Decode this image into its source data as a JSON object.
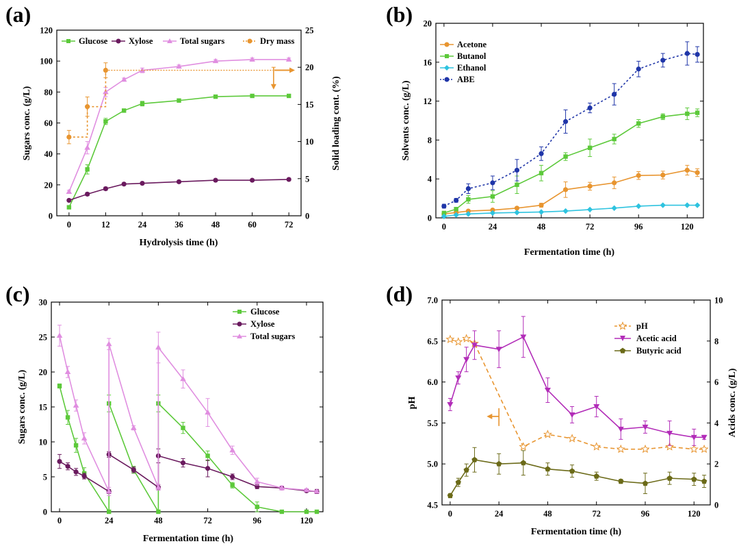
{
  "chart_data": [
    {
      "panel": "(a)",
      "type": "line",
      "xlabel": "Hydrolysis time (h)",
      "ylabel": "Sugars conc. (g/L)",
      "y2label": "Solid loading cont. (%)",
      "xlim": [
        -4,
        76
      ],
      "ylim": [
        0,
        120
      ],
      "y2lim": [
        0,
        25
      ],
      "xticks": [
        0,
        12,
        24,
        36,
        48,
        60,
        72
      ],
      "yticks": [
        0,
        20,
        40,
        60,
        80,
        100,
        120
      ],
      "y2ticks": [
        0,
        5,
        10,
        15,
        20,
        25
      ],
      "series": [
        {
          "name": "Glucose",
          "color": "#5cc93a",
          "marker": "square",
          "dash": "",
          "axis": "left",
          "x": [
            0,
            6,
            12,
            18,
            24,
            36,
            48,
            60,
            72
          ],
          "y": [
            5.5,
            30,
            61,
            68,
            72.5,
            74.5,
            77,
            77.5,
            77.5
          ],
          "err": [
            1,
            3,
            2,
            1,
            1.5,
            1,
            1,
            1,
            1
          ]
        },
        {
          "name": "Xylose",
          "color": "#6a1a5e",
          "marker": "circle",
          "dash": "",
          "axis": "left",
          "x": [
            0,
            6,
            12,
            18,
            24,
            36,
            48,
            60,
            72
          ],
          "y": [
            10,
            14,
            17.5,
            20.5,
            21,
            22,
            23,
            23,
            23.5
          ],
          "err": [
            0.5,
            1,
            1,
            0.5,
            0.5,
            0.5,
            0.5,
            0.5,
            0.5
          ]
        },
        {
          "name": "Total sugars",
          "color": "#e08ee0",
          "marker": "triangle",
          "dash": "",
          "axis": "left",
          "x": [
            0,
            6,
            12,
            18,
            24,
            36,
            48,
            60,
            72
          ],
          "y": [
            15.5,
            44,
            80,
            88,
            94,
            96.5,
            100,
            101,
            101
          ],
          "err": [
            1,
            4,
            3,
            1,
            1.5,
            1,
            1,
            1,
            1
          ]
        },
        {
          "name": "Dry mass",
          "color": "#e89530",
          "marker": "circle",
          "dash": "3,3",
          "axis": "right",
          "step": true,
          "x": [
            0,
            6,
            12
          ],
          "y": [
            10.6,
            14.7,
            19.6
          ],
          "err": [
            0.9,
            1.3,
            1.0
          ]
        }
      ],
      "annotations": [
        {
          "type": "hline-arrow",
          "x1": 12,
          "x2": 74,
          "y2": 19.6
        },
        {
          "type": "arrow",
          "x": 67,
          "from": 20,
          "to": 17
        }
      ]
    },
    {
      "panel": "(b)",
      "type": "line",
      "xlabel": "Fermentation time (h)",
      "ylabel": "Solvents conc. (g/L)",
      "xlim": [
        -4,
        128
      ],
      "ylim": [
        0,
        20
      ],
      "xticks": [
        0,
        24,
        48,
        72,
        96,
        120
      ],
      "yticks": [
        0,
        4,
        8,
        12,
        16,
        20
      ],
      "series": [
        {
          "name": "Acetone",
          "color": "#e89530",
          "marker": "circle",
          "dash": "",
          "x": [
            0,
            6,
            12,
            24,
            36,
            48,
            60,
            72,
            84,
            96,
            108,
            120,
            125
          ],
          "y": [
            0.4,
            0.55,
            0.7,
            0.8,
            1.0,
            1.3,
            2.9,
            3.25,
            3.6,
            4.35,
            4.4,
            4.9,
            4.65
          ],
          "err": [
            0.1,
            0.1,
            0.1,
            0.1,
            0.1,
            0.2,
            0.8,
            0.4,
            0.6,
            0.4,
            0.4,
            0.5,
            0.4
          ]
        },
        {
          "name": "Butanol",
          "color": "#5cc93a",
          "marker": "square",
          "dash": "",
          "x": [
            0,
            6,
            12,
            24,
            36,
            48,
            60,
            72,
            84,
            96,
            108,
            120,
            125
          ],
          "y": [
            0.5,
            0.9,
            1.9,
            2.2,
            3.4,
            4.6,
            6.3,
            7.2,
            8.1,
            9.7,
            10.4,
            10.7,
            10.8
          ],
          "err": [
            0.1,
            0.1,
            0.4,
            0.6,
            0.9,
            0.8,
            0.4,
            0.9,
            0.5,
            0.4,
            0.3,
            0.6,
            0.4
          ]
        },
        {
          "name": "Ethanol",
          "color": "#2ec3df",
          "marker": "diamond",
          "dash": "",
          "x": [
            0,
            6,
            12,
            24,
            36,
            48,
            60,
            72,
            84,
            96,
            108,
            120,
            125
          ],
          "y": [
            0.15,
            0.3,
            0.4,
            0.5,
            0.55,
            0.6,
            0.7,
            0.85,
            1.0,
            1.2,
            1.3,
            1.3,
            1.3
          ],
          "err": [
            0,
            0,
            0,
            0,
            0,
            0,
            0,
            0,
            0,
            0,
            0,
            0,
            0
          ]
        },
        {
          "name": "ABE",
          "color": "#1f35a8",
          "marker": "circle",
          "dash": "3,3",
          "x": [
            0,
            6,
            12,
            24,
            36,
            48,
            60,
            72,
            84,
            96,
            108,
            120,
            125
          ],
          "y": [
            1.2,
            1.8,
            3.0,
            3.6,
            4.9,
            6.6,
            9.9,
            11.3,
            12.7,
            15.3,
            16.2,
            16.9,
            16.8
          ],
          "err": [
            0.2,
            0.2,
            0.5,
            0.7,
            1.1,
            0.7,
            1.2,
            0.5,
            1.1,
            0.8,
            0.7,
            1.2,
            0.8
          ]
        }
      ]
    },
    {
      "panel": "(c)",
      "type": "line",
      "xlabel": "Fermentation time (h)",
      "ylabel": "Sugars conc. (g/L)",
      "xlim": [
        -4,
        128
      ],
      "ylim": [
        0,
        30
      ],
      "xticks": [
        0,
        24,
        48,
        72,
        96,
        120
      ],
      "yticks": [
        0,
        5,
        10,
        15,
        20,
        25,
        30
      ],
      "series": [
        {
          "name": "Glucose",
          "color": "#5cc93a",
          "marker": "square",
          "dash": "",
          "x": [
            0,
            4,
            8,
            12,
            24,
            24,
            36,
            48,
            48,
            60,
            72,
            84,
            96,
            108,
            120,
            125
          ],
          "y": [
            18,
            13.5,
            9.5,
            5.5,
            0,
            15.5,
            6,
            0,
            15.5,
            12,
            8,
            3.8,
            0.7,
            0,
            0,
            0
          ],
          "err": [
            0.3,
            1.0,
            1.0,
            0.8,
            0,
            1.2,
            0.5,
            0,
            1.2,
            0.8,
            0.7,
            0.4,
            0.7,
            0,
            0,
            0
          ]
        },
        {
          "name": "Xylose",
          "color": "#6a1a5e",
          "marker": "circle",
          "dash": "",
          "x": [
            0,
            4,
            8,
            12,
            24,
            24,
            36,
            48,
            48,
            60,
            72,
            84,
            96,
            108,
            120,
            125
          ],
          "y": [
            7.2,
            6.5,
            5.7,
            5.1,
            2.9,
            8.2,
            6.0,
            3.5,
            8.0,
            7.0,
            6.2,
            5.0,
            3.6,
            3.4,
            3.0,
            2.9
          ],
          "err": [
            1.0,
            0.5,
            0.5,
            0.4,
            0.3,
            0.4,
            0.4,
            0.4,
            1.0,
            0.6,
            1.2,
            0.4,
            0.3,
            0.2,
            0.2,
            0.3
          ]
        },
        {
          "name": "Total sugars",
          "color": "#e08ee0",
          "marker": "triangle",
          "dash": "",
          "x": [
            0,
            4,
            8,
            12,
            24,
            24,
            36,
            48,
            48,
            60,
            72,
            84,
            96,
            108,
            120,
            125
          ],
          "y": [
            25.2,
            20,
            15.2,
            10.5,
            2.9,
            24,
            12,
            3.5,
            23.5,
            19,
            14.2,
            8.8,
            4.3,
            3.4,
            3.1,
            2.9
          ],
          "err": [
            1.5,
            0.8,
            0.8,
            0.8,
            0.6,
            0.8,
            0.3,
            0.4,
            2.2,
            1.3,
            2.0,
            0.6,
            0.5,
            0.3,
            0.2,
            0.2
          ]
        }
      ]
    },
    {
      "panel": "(d)",
      "type": "line",
      "xlabel": "Fermentation time (h)",
      "ylabel": "pH",
      "y2label": "Acids conc. (g/L)",
      "xlim": [
        -4,
        128
      ],
      "ylim": [
        4.5,
        7.0
      ],
      "y2lim": [
        0,
        10
      ],
      "xticks": [
        0,
        24,
        48,
        72,
        96,
        120
      ],
      "yticks": [
        4.5,
        5.0,
        5.5,
        6.0,
        6.5,
        7.0
      ],
      "y2ticks": [
        0,
        2,
        4,
        6,
        8,
        10
      ],
      "series": [
        {
          "name": "pH",
          "color": "#e89530",
          "marker": "star",
          "dash": "6,4",
          "axis": "left",
          "x": [
            0,
            4,
            8,
            12,
            36,
            48,
            60,
            72,
            84,
            96,
            108,
            120,
            125
          ],
          "y": [
            6.52,
            6.49,
            6.53,
            6.47,
            5.21,
            5.36,
            5.31,
            5.21,
            5.18,
            5.18,
            5.21,
            5.18,
            5.18
          ],
          "err": [
            0,
            0,
            0,
            0,
            0,
            0,
            0,
            0,
            0,
            0,
            0,
            0,
            0
          ]
        },
        {
          "name": "Acetic acid",
          "color": "#b22cb8",
          "marker": "triangle-down",
          "dash": "",
          "axis": "right",
          "x": [
            0,
            4,
            8,
            12,
            24,
            36,
            48,
            60,
            72,
            84,
            96,
            108,
            120,
            125
          ],
          "y": [
            4.9,
            6.2,
            7.1,
            7.8,
            7.6,
            8.2,
            5.6,
            4.4,
            4.8,
            3.7,
            3.8,
            3.5,
            3.3,
            3.3
          ],
          "err": [
            0.3,
            0.3,
            0.6,
            0.7,
            0.9,
            1.0,
            0.6,
            0.4,
            0.5,
            0.5,
            0.3,
            0.6,
            0.4,
            0.1
          ]
        },
        {
          "name": "Butyric acid",
          "color": "#6b6a18",
          "marker": "pentagon",
          "dash": "",
          "axis": "right",
          "x": [
            0,
            4,
            8,
            12,
            24,
            36,
            48,
            60,
            72,
            84,
            96,
            108,
            120,
            125
          ],
          "y": [
            0.45,
            1.1,
            1.7,
            2.2,
            2.0,
            2.05,
            1.75,
            1.65,
            1.4,
            1.15,
            1.05,
            1.3,
            1.25,
            1.15
          ],
          "err": [
            0.1,
            0.2,
            0.3,
            0.6,
            0.5,
            0.6,
            0.3,
            0.3,
            0.2,
            0.1,
            0.5,
            0.3,
            0.3,
            0.3
          ]
        }
      ],
      "annotations": [
        {
          "type": "arrow-left",
          "x": 24,
          "xto": 18,
          "y": 5.58
        },
        {
          "type": "vline",
          "x": 24,
          "ylow": 5.58
        }
      ]
    }
  ]
}
